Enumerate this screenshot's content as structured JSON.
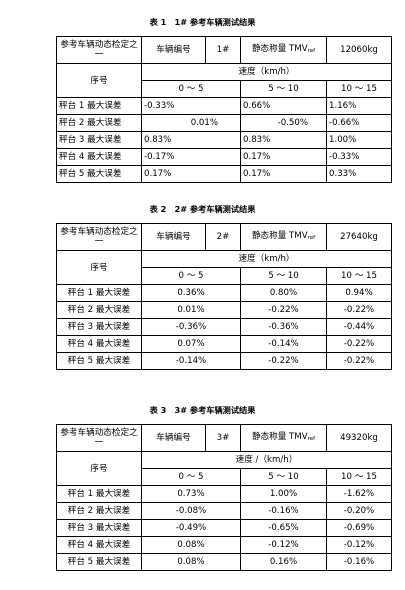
{
  "tables": [
    {
      "title": "表 1　1# 参考车辆测试结果",
      "ref_label": "参考车辆动态检定之一",
      "vehicle_no_label": "车辆编号",
      "vehicle_no": "1#",
      "static_weight_label": "静态称量 TMV",
      "static_weight_sub": "ref",
      "static_weight": "12060kg",
      "index_label": "序号",
      "speed_label": "速度（km/h）",
      "speed_ranges": [
        "0 ～ 5",
        "5 ～ 10",
        "10 ～ 15"
      ],
      "rows": [
        {
          "label": "秤台 1 最大误差",
          "values": [
            "-0.33%",
            "0.66%",
            "1.16%"
          ]
        },
        {
          "label": "秤台 2 最大误差",
          "values": [
            "0.01%",
            "-0.50%",
            "-0.66%"
          ]
        },
        {
          "label": "秤台 3 最大误差",
          "values": [
            "0.83%",
            "0.83%",
            "1.00%"
          ]
        },
        {
          "label": "秤台 4 最大误差",
          "values": [
            "-0.17%",
            "0.17%",
            "-0.33%"
          ]
        },
        {
          "label": "秤台 5 最大误差",
          "values": [
            "0.17%",
            "0.17%",
            "0.33%"
          ]
        }
      ]
    },
    {
      "title": "表 2　2# 参考车辆测试结果",
      "ref_label": "参考车辆动态检定之一",
      "vehicle_no_label": "车辆编号",
      "vehicle_no": "2#",
      "static_weight_label": "静态称量 TMV",
      "static_weight_sub": "ref",
      "static_weight": "27640kg",
      "index_label": "序号",
      "speed_label": "速度（km/h）",
      "speed_ranges": [
        "0 ～ 5",
        "5 ～ 10",
        "10 ～ 15"
      ],
      "rows": [
        {
          "label": "秤台 1 最大误差",
          "values": [
            "0.36%",
            "0.80%",
            "0.94%"
          ]
        },
        {
          "label": "秤台 2 最大误差",
          "values": [
            "0.01%",
            "-0.22%",
            "-0.22%"
          ]
        },
        {
          "label": "秤台 3 最大误差",
          "values": [
            "-0.36%",
            "-0.36%",
            "-0.44%"
          ]
        },
        {
          "label": "秤台 4 最大误差",
          "values": [
            "0.07%",
            "-0.14%",
            "-0.22%"
          ]
        },
        {
          "label": "秤台 5 最大误差",
          "values": [
            "-0.14%",
            "-0.22%",
            "-0.22%"
          ]
        }
      ]
    },
    {
      "title": "表 3　3# 参考车辆测试结果",
      "ref_label": "参考车辆动态检定之一",
      "vehicle_no_label": "车辆编号",
      "vehicle_no": "3#",
      "static_weight_label": "静态称量 TMV",
      "static_weight_sub": "ref",
      "static_weight": "49320kg",
      "index_label": "序号",
      "speed_label": "速度 /（km/h）",
      "speed_ranges": [
        "0 ～ 5",
        "5 ～ 10",
        "10 ～ 15"
      ],
      "rows": [
        {
          "label": "秤台 1 最大误差",
          "values": [
            "0.73%",
            "1.00%",
            "-1.62%"
          ]
        },
        {
          "label": "秤台 2 最大误差",
          "values": [
            "-0.08%",
            "-0.16%",
            "-0.20%"
          ]
        },
        {
          "label": "秤台 3 最大误差",
          "values": [
            "-0.49%",
            "-0.65%",
            "-0.69%"
          ]
        },
        {
          "label": "秤台 4 最大误差",
          "values": [
            "0.08%",
            "-0.12%",
            "-0.12%"
          ]
        },
        {
          "label": "秤台 5 最大误差",
          "values": [
            "0.08%",
            "0.16%",
            "-0.16%"
          ]
        }
      ]
    }
  ]
}
